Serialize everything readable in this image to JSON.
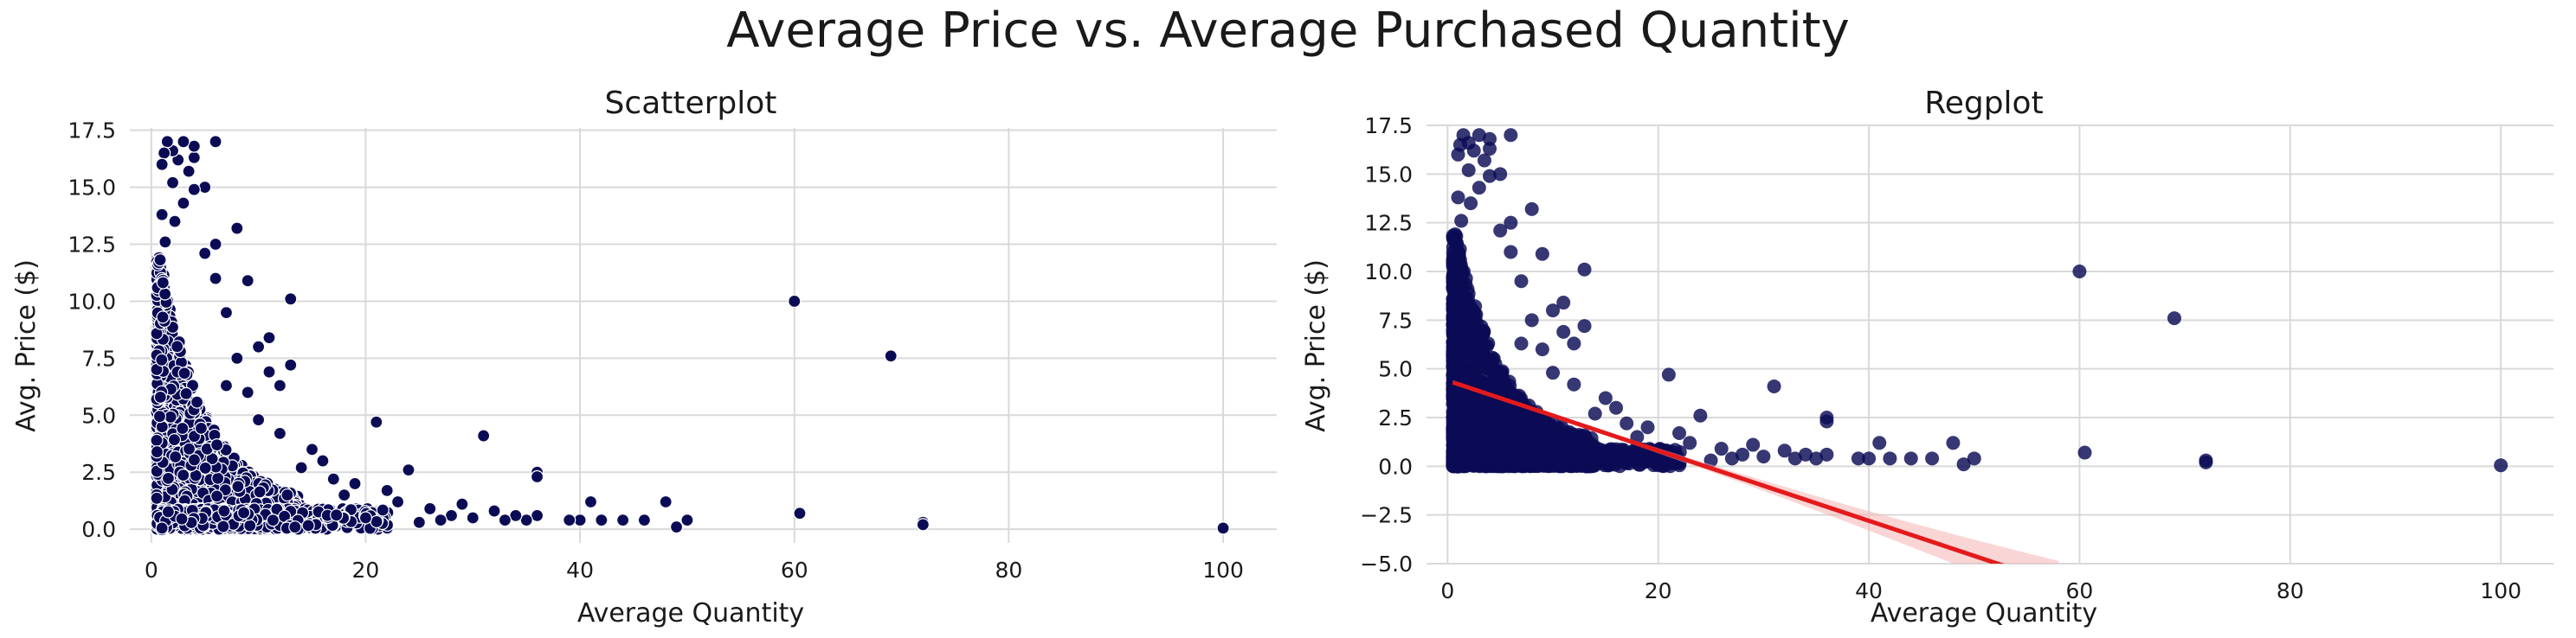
{
  "figure": {
    "title": "Average Price vs. Average Purchased Quantity",
    "colors": {
      "point": "#0b0b55",
      "point_edge": "#ffffff",
      "reg_line": "#e31a1c",
      "ci_band": "#f6b3b3",
      "grid": "#d9d9d9"
    }
  },
  "chart_data": [
    {
      "type": "scatter",
      "title": "Scatterplot",
      "xlabel": "Average Quantity",
      "ylabel": "Avg. Price ($)",
      "xlim": [
        -2,
        105
      ],
      "ylim": [
        -0.6,
        17.6
      ],
      "xticks": [
        0,
        20,
        40,
        60,
        80,
        100
      ],
      "xtick_labels": [
        "0",
        "20",
        "40",
        "60",
        "80",
        "100"
      ],
      "yticks": [
        0,
        2.5,
        5,
        7.5,
        10,
        12.5,
        15,
        17.5
      ],
      "ytick_labels": [
        "0.0",
        "2.5",
        "5.0",
        "7.5",
        "10.0",
        "12.5",
        "15.0",
        "17.5"
      ],
      "grid": true,
      "points": [
        [
          60,
          10.0
        ],
        [
          69,
          7.6
        ],
        [
          72,
          0.3
        ],
        [
          72,
          0.2
        ],
        [
          100,
          0.05
        ],
        [
          60.5,
          0.7
        ],
        [
          50,
          0.4
        ],
        [
          49,
          0.1
        ],
        [
          48,
          1.2
        ],
        [
          46,
          0.4
        ],
        [
          44,
          0.4
        ],
        [
          42,
          0.4
        ],
        [
          41,
          1.2
        ],
        [
          40,
          0.4
        ],
        [
          39,
          0.4
        ],
        [
          36,
          0.6
        ],
        [
          36,
          2.5
        ],
        [
          36,
          2.3
        ],
        [
          35,
          0.4
        ],
        [
          34,
          0.6
        ],
        [
          33,
          0.4
        ],
        [
          32,
          0.8
        ],
        [
          31,
          4.1
        ],
        [
          30,
          0.5
        ],
        [
          29,
          1.1
        ],
        [
          28,
          0.6
        ],
        [
          27,
          0.4
        ],
        [
          26,
          0.9
        ],
        [
          25,
          0.3
        ],
        [
          24,
          2.6
        ],
        [
          23,
          1.2
        ],
        [
          22,
          1.7
        ],
        [
          21,
          4.7
        ],
        [
          20,
          0.5
        ],
        [
          19,
          2.0
        ],
        [
          18,
          1.5
        ],
        [
          17,
          2.2
        ],
        [
          16,
          3.0
        ],
        [
          15,
          3.5
        ],
        [
          14,
          2.7
        ],
        [
          13,
          10.1
        ],
        [
          13,
          7.2
        ],
        [
          12,
          6.3
        ],
        [
          12,
          4.2
        ],
        [
          11,
          8.4
        ],
        [
          11,
          6.9
        ],
        [
          10,
          8.0
        ],
        [
          10,
          4.8
        ],
        [
          9,
          10.9
        ],
        [
          9,
          6.0
        ],
        [
          8,
          13.2
        ],
        [
          8,
          7.5
        ],
        [
          7,
          9.5
        ],
        [
          7,
          6.3
        ],
        [
          6,
          17.0
        ],
        [
          6,
          12.5
        ],
        [
          6,
          11.0
        ],
        [
          5,
          12.1
        ],
        [
          5,
          15.0
        ],
        [
          4,
          16.3
        ],
        [
          4,
          14.9
        ],
        [
          4,
          16.8
        ],
        [
          3.5,
          15.7
        ],
        [
          3,
          17.0
        ],
        [
          3,
          14.3
        ],
        [
          2.5,
          16.2
        ],
        [
          2,
          16.6
        ],
        [
          2,
          15.2
        ],
        [
          1.5,
          17.0
        ],
        [
          1.2,
          16.5
        ],
        [
          1,
          16.0
        ],
        [
          1,
          13.8
        ],
        [
          1.3,
          12.6
        ],
        [
          2.2,
          13.5
        ],
        [
          1,
          -0.02
        ],
        [
          1,
          0.05
        ]
      ],
      "dense_cluster": {
        "x_range": [
          0.5,
          14
        ],
        "y_range": [
          0,
          12
        ],
        "decay": "dense near low quantity, thinning with x"
      }
    },
    {
      "type": "scatter",
      "title": "Regplot",
      "xlabel": "Average Quantity",
      "ylabel": "Avg. Price ($)",
      "xlim": [
        -2,
        105
      ],
      "ylim": [
        -5,
        17.5
      ],
      "xticks": [
        0,
        20,
        40,
        60,
        80,
        100
      ],
      "xtick_labels": [
        "0",
        "20",
        "40",
        "60",
        "80",
        "100"
      ],
      "yticks": [
        -5,
        -2.5,
        0,
        2.5,
        5,
        7.5,
        10,
        12.5,
        15,
        17.5
      ],
      "ytick_labels": [
        "−5.0",
        "−2.5",
        "0.0",
        "2.5",
        "5.0",
        "7.5",
        "10.0",
        "12.5",
        "15.0",
        "17.5"
      ],
      "grid": true,
      "regression": {
        "intercept": 4.4,
        "slope": -0.18,
        "x_range": [
          0.5,
          58
        ],
        "ci_halfwidth_at_end": 1.1
      },
      "points": [
        [
          60,
          10.0
        ],
        [
          69,
          7.6
        ],
        [
          72,
          0.3
        ],
        [
          72,
          0.2
        ],
        [
          100,
          0.05
        ],
        [
          60.5,
          0.7
        ],
        [
          50,
          0.4
        ],
        [
          49,
          0.1
        ],
        [
          48,
          1.2
        ],
        [
          46,
          0.4
        ],
        [
          44,
          0.4
        ],
        [
          42,
          0.4
        ],
        [
          41,
          1.2
        ],
        [
          40,
          0.4
        ],
        [
          39,
          0.4
        ],
        [
          36,
          0.6
        ],
        [
          36,
          2.5
        ],
        [
          36,
          2.3
        ],
        [
          35,
          0.4
        ],
        [
          34,
          0.6
        ],
        [
          33,
          0.4
        ],
        [
          32,
          0.8
        ],
        [
          31,
          4.1
        ],
        [
          30,
          0.5
        ],
        [
          29,
          1.1
        ],
        [
          28,
          0.6
        ],
        [
          27,
          0.4
        ],
        [
          26,
          0.9
        ],
        [
          25,
          0.3
        ],
        [
          24,
          2.6
        ],
        [
          23,
          1.2
        ],
        [
          22,
          1.7
        ],
        [
          21,
          4.7
        ],
        [
          20,
          0.5
        ],
        [
          19,
          2.0
        ],
        [
          18,
          1.5
        ],
        [
          17,
          2.2
        ],
        [
          16,
          3.0
        ],
        [
          15,
          3.5
        ],
        [
          14,
          2.7
        ],
        [
          13,
          10.1
        ],
        [
          13,
          7.2
        ],
        [
          12,
          6.3
        ],
        [
          12,
          4.2
        ],
        [
          11,
          8.4
        ],
        [
          11,
          6.9
        ],
        [
          10,
          8.0
        ],
        [
          10,
          4.8
        ],
        [
          9,
          10.9
        ],
        [
          9,
          6.0
        ],
        [
          8,
          13.2
        ],
        [
          8,
          7.5
        ],
        [
          7,
          9.5
        ],
        [
          7,
          6.3
        ],
        [
          6,
          17.0
        ],
        [
          6,
          12.5
        ],
        [
          6,
          11.0
        ],
        [
          5,
          12.1
        ],
        [
          5,
          15.0
        ],
        [
          4,
          16.3
        ],
        [
          4,
          14.9
        ],
        [
          4,
          16.8
        ],
        [
          3.5,
          15.7
        ],
        [
          3,
          17.0
        ],
        [
          3,
          14.3
        ],
        [
          2.5,
          16.2
        ],
        [
          2,
          16.6
        ],
        [
          2,
          15.2
        ],
        [
          1.5,
          17.0
        ],
        [
          1.2,
          16.5
        ],
        [
          1,
          16.0
        ],
        [
          1,
          13.8
        ],
        [
          1.3,
          12.6
        ],
        [
          2.2,
          13.5
        ],
        [
          1,
          -0.02
        ],
        [
          1,
          0.05
        ]
      ],
      "dense_cluster": {
        "x_range": [
          0.5,
          14
        ],
        "y_range": [
          0,
          12
        ],
        "decay": "dense near low quantity, thinning with x"
      }
    }
  ]
}
